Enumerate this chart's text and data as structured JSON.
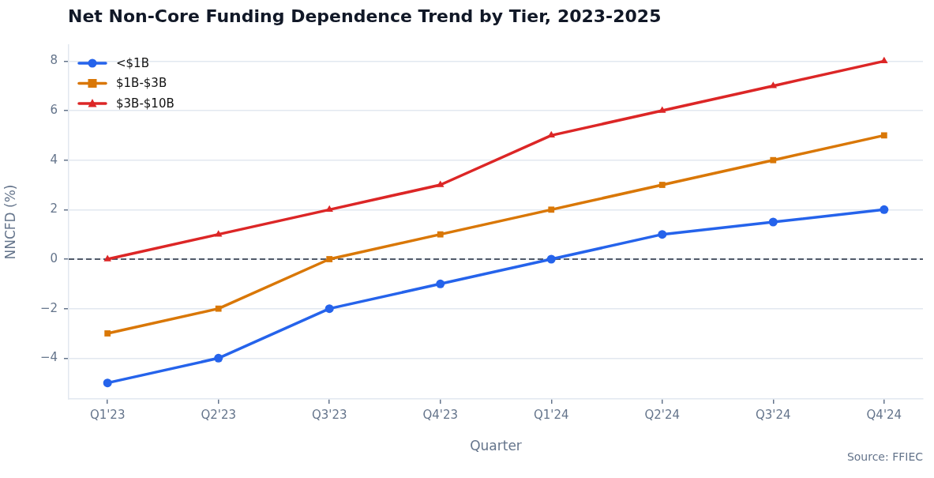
{
  "chart_data": {
    "type": "line",
    "title": "Net Non-Core Funding Dependence Trend by Tier, 2023-2025",
    "xlabel": "Quarter",
    "ylabel": "NNCFD (%)",
    "categories": [
      "Q1'23",
      "Q2'23",
      "Q3'23",
      "Q4'23",
      "Q1'24",
      "Q2'24",
      "Q3'24",
      "Q4'24"
    ],
    "series": [
      {
        "name": "<$1B",
        "color": "#2563eb",
        "marker": "circle",
        "values": [
          -5,
          -4,
          -2,
          -1,
          0,
          1,
          1.5,
          2
        ]
      },
      {
        "name": "$1B-$3B",
        "color": "#d97706",
        "marker": "square",
        "values": [
          -3,
          -2,
          0,
          1,
          2,
          3,
          4,
          5
        ]
      },
      {
        "name": "$3B-$10B",
        "color": "#dc2626",
        "marker": "triangle",
        "values": [
          0,
          1,
          2,
          3,
          5,
          6,
          7,
          8
        ]
      }
    ],
    "ylim": [
      -5.65,
      8.65
    ],
    "yticks": [
      {
        "value": -4,
        "label": "−4"
      },
      {
        "value": -2,
        "label": "−2"
      },
      0,
      2,
      4,
      6,
      8
    ],
    "grid": "y",
    "legend": "top left",
    "line_style": "solid",
    "ref_lines": [
      {
        "axis": "y",
        "value": 0,
        "color": "#1e293b",
        "line_style": "dashed"
      }
    ],
    "annotations": [
      "Source: FFIEC"
    ]
  }
}
